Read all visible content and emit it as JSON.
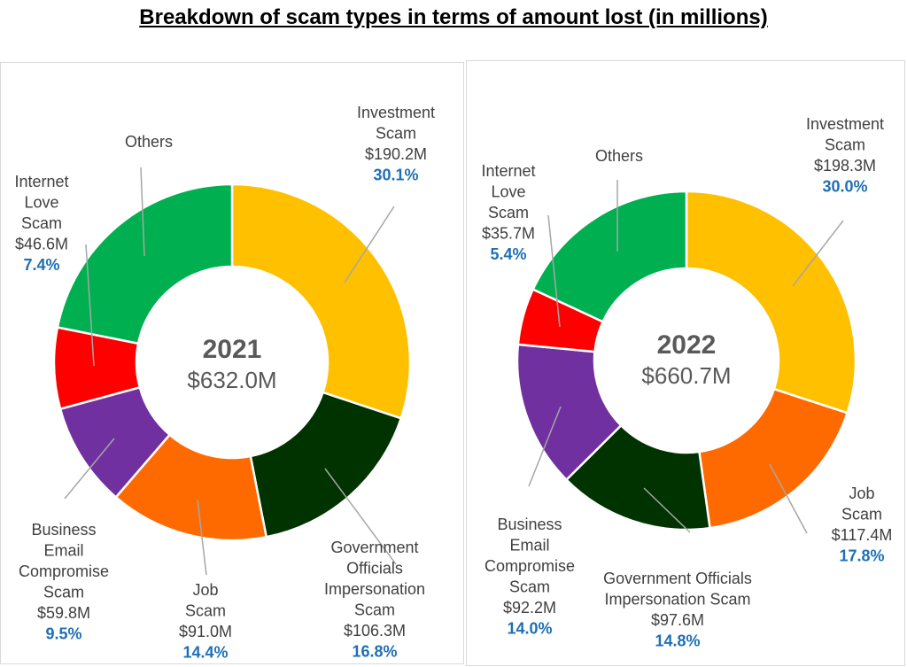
{
  "title": "Breakdown of scam types in terms of amount lost (in millions)",
  "colors": {
    "investment": "#ffc000",
    "job": "#ff6a00",
    "government": "#013300",
    "business": "#7030a0",
    "love": "#ff0000",
    "others": "#00b050",
    "leader": "#a6a6a6",
    "pct_text": "#1f6fb5"
  },
  "chart_data": [
    {
      "type": "pie",
      "variant": "donut",
      "center_year": "2021",
      "center_total": "$632.0M",
      "slices": [
        {
          "key": "investment",
          "name_lines": [
            "Investment",
            "Scam"
          ],
          "amount": "$190.2M",
          "value": 190.2,
          "pct": "30.1%"
        },
        {
          "key": "government",
          "name_lines": [
            "Government",
            "Officials",
            "Impersonation",
            "Scam"
          ],
          "amount": "$106.3M",
          "value": 106.3,
          "pct": "16.8%"
        },
        {
          "key": "job",
          "name_lines": [
            "Job",
            "Scam"
          ],
          "amount": "$91.0M",
          "value": 91.0,
          "pct": "14.4%"
        },
        {
          "key": "business",
          "name_lines": [
            "Business",
            "Email",
            "Compromise",
            "Scam"
          ],
          "amount": "$59.8M",
          "value": 59.8,
          "pct": "9.5%"
        },
        {
          "key": "love",
          "name_lines": [
            "Internet",
            "Love",
            "Scam"
          ],
          "amount": "$46.6M",
          "value": 46.6,
          "pct": "7.4%"
        },
        {
          "key": "others",
          "name_lines": [
            "Others"
          ],
          "amount": "",
          "value": 138.1,
          "pct": ""
        }
      ]
    },
    {
      "type": "pie",
      "variant": "donut",
      "center_year": "2022",
      "center_total": "$660.7M",
      "slices": [
        {
          "key": "investment",
          "name_lines": [
            "Investment",
            "Scam"
          ],
          "amount": "$198.3M",
          "value": 198.3,
          "pct": "30.0%"
        },
        {
          "key": "job",
          "name_lines": [
            "Job",
            "Scam"
          ],
          "amount": "$117.4M",
          "value": 117.4,
          "pct": "17.8%"
        },
        {
          "key": "government",
          "name_lines": [
            "Government Officials",
            "Impersonation Scam"
          ],
          "amount": "$97.6M",
          "value": 97.6,
          "pct": "14.8%"
        },
        {
          "key": "business",
          "name_lines": [
            "Business",
            "Email",
            "Compromise",
            "Scam"
          ],
          "amount": "$92.2M",
          "value": 92.2,
          "pct": "14.0%"
        },
        {
          "key": "love",
          "name_lines": [
            "Internet",
            "Love",
            "Scam"
          ],
          "amount": "$35.7M",
          "value": 35.7,
          "pct": "5.4%"
        },
        {
          "key": "others",
          "name_lines": [
            "Others"
          ],
          "amount": "",
          "value": 119.5,
          "pct": ""
        }
      ]
    }
  ]
}
